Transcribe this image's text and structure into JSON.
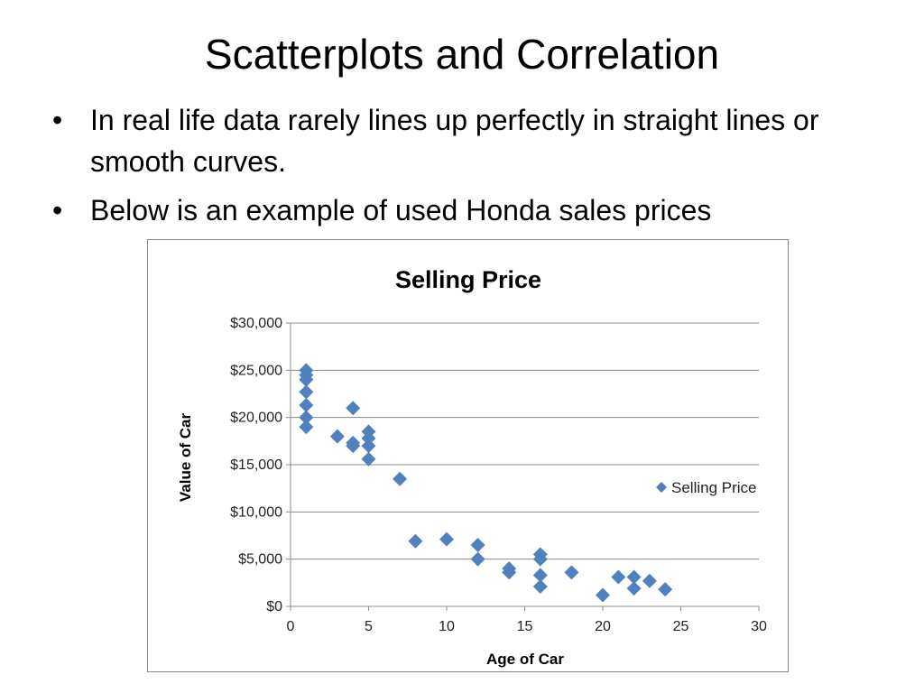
{
  "slide": {
    "title": "Scatterplots and Correlation",
    "bullets": [
      "In real life data rarely lines up perfectly in straight lines or smooth curves.",
      "Below is an example of used Honda sales prices"
    ]
  },
  "chart_data": {
    "type": "scatter",
    "title": "Selling Price",
    "xlabel": "Age of Car",
    "ylabel": "Value of Car",
    "xlim": [
      0,
      30
    ],
    "ylim": [
      0,
      30000
    ],
    "x_ticks": [
      0,
      5,
      10,
      15,
      20,
      25,
      30
    ],
    "y_ticks": [
      0,
      5000,
      10000,
      15000,
      20000,
      25000,
      30000
    ],
    "y_tick_labels": [
      "$0",
      "$5,000",
      "$10,000",
      "$15,000",
      "$20,000",
      "$25,000",
      "$30,000"
    ],
    "grid": "horizontal",
    "legend_position": "right",
    "marker_color": "#4F81BD",
    "series": [
      {
        "name": "Selling Price",
        "points": [
          [
            1,
            25000
          ],
          [
            1,
            24500
          ],
          [
            1,
            24000
          ],
          [
            1,
            22700
          ],
          [
            1,
            21300
          ],
          [
            1,
            20000
          ],
          [
            1,
            19000
          ],
          [
            3,
            18000
          ],
          [
            4,
            21000
          ],
          [
            4,
            17300
          ],
          [
            4,
            17000
          ],
          [
            5,
            18500
          ],
          [
            5,
            17800
          ],
          [
            5,
            17000
          ],
          [
            5,
            15600
          ],
          [
            7,
            13500
          ],
          [
            8,
            6900
          ],
          [
            10,
            7100
          ],
          [
            12,
            6500
          ],
          [
            12,
            5000
          ],
          [
            14,
            4000
          ],
          [
            14,
            3600
          ],
          [
            16,
            5500
          ],
          [
            16,
            5000
          ],
          [
            16,
            3300
          ],
          [
            16,
            2100
          ],
          [
            18,
            3600
          ],
          [
            20,
            1200
          ],
          [
            21,
            3100
          ],
          [
            22,
            3100
          ],
          [
            22,
            1900
          ],
          [
            23,
            2700
          ],
          [
            24,
            1800
          ]
        ]
      }
    ]
  }
}
